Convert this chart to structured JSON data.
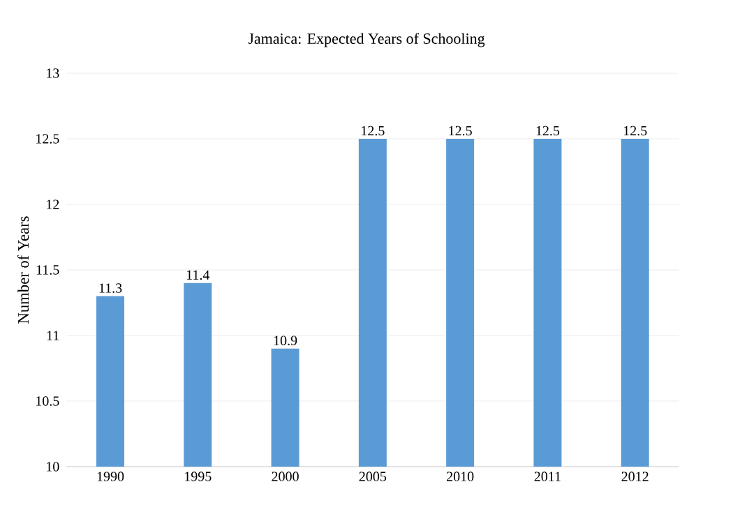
{
  "chart_data": {
    "type": "bar",
    "title": "Jamaica: Expected Years of Schooling",
    "ylabel": "Number of Years",
    "categories": [
      "1990",
      "1995",
      "2000",
      "2005",
      "2010",
      "2011",
      "2012"
    ],
    "values": [
      11.3,
      11.4,
      10.9,
      12.5,
      12.5,
      12.5,
      12.5
    ],
    "color": "#5b9bd5",
    "ylim": [
      10,
      13
    ],
    "yticks": [
      10,
      10.5,
      11,
      11.5,
      12,
      12.5,
      13
    ],
    "grid": "y",
    "data_labels": true
  }
}
